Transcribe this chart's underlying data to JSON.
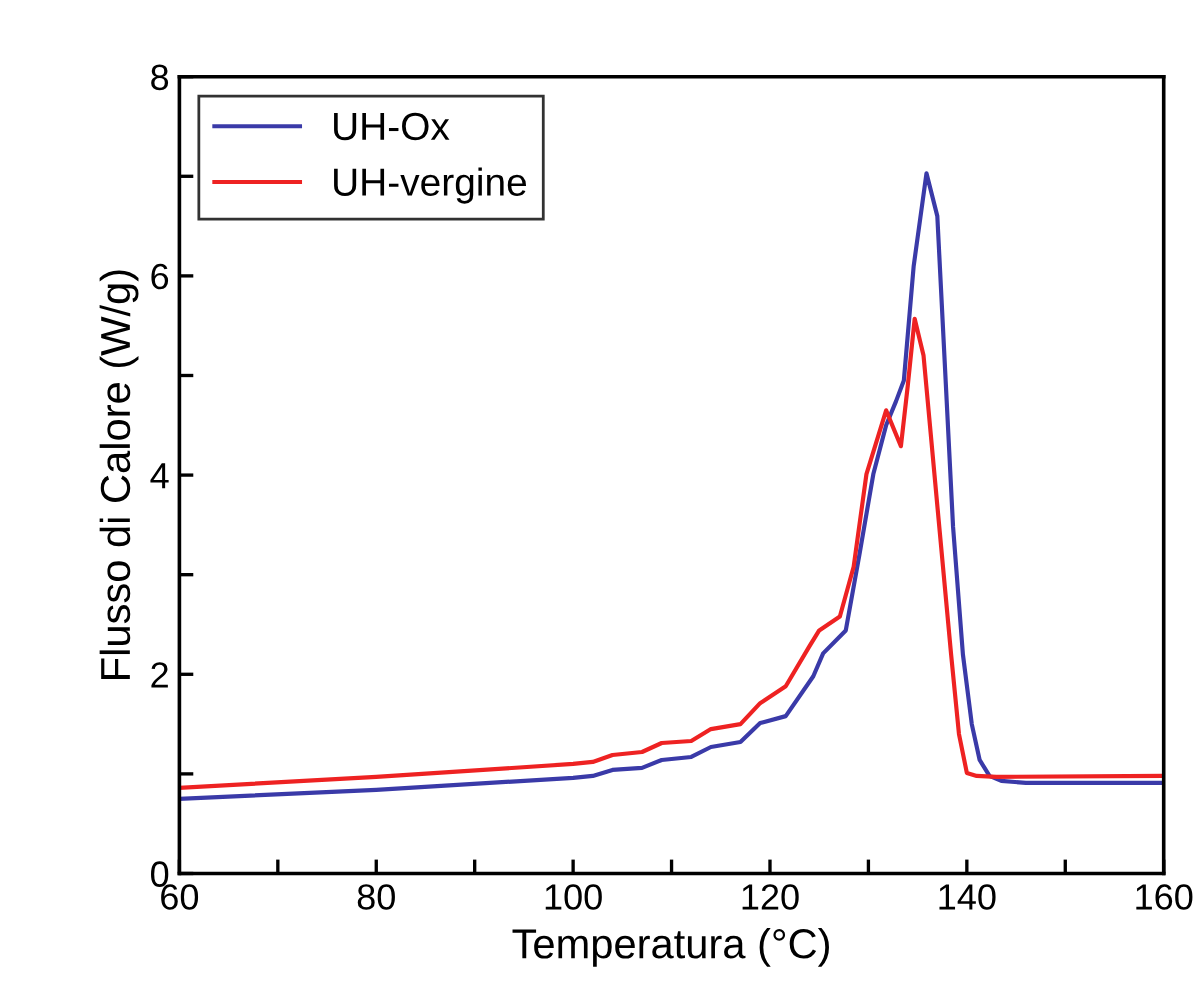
{
  "chart_data": {
    "type": "line",
    "xlabel": "Temperatura (°C)",
    "ylabel": "Flusso di Calore (W/g)",
    "xlim": [
      60,
      160
    ],
    "ylim": [
      0,
      8
    ],
    "xticks": [
      60,
      {
        "value": 70,
        "label": null
      },
      80,
      {
        "value": 90,
        "label": null
      },
      100,
      {
        "value": 110,
        "label": null
      },
      120,
      {
        "value": 130,
        "label": null
      },
      140,
      {
        "value": 150,
        "label": null
      },
      160
    ],
    "yticks": [
      0,
      {
        "value": 1,
        "label": null
      },
      2,
      {
        "value": 3,
        "label": null
      },
      4,
      {
        "value": 5,
        "label": null
      },
      6,
      {
        "value": 7,
        "label": null
      },
      8
    ],
    "legend": "top left",
    "grid": false,
    "series": [
      {
        "name": "UH-Ox",
        "color": "#3a3aa8",
        "x": [
          60,
          80,
          100,
          102,
          104,
          107,
          109,
          112,
          114,
          117,
          119,
          121.6,
          124.4,
          125.4,
          127.7,
          129.1,
          130.5,
          131.8,
          132.8,
          133.6,
          134.6,
          135.9,
          137,
          138.6,
          139.6,
          140.5,
          141.3,
          142.3,
          143.5,
          146,
          160
        ],
        "values": [
          0.75,
          0.84,
          0.96,
          0.98,
          1.04,
          1.06,
          1.14,
          1.17,
          1.27,
          1.32,
          1.51,
          1.58,
          1.98,
          2.21,
          2.44,
          3.21,
          4.01,
          4.5,
          4.74,
          4.95,
          6.1,
          7.03,
          6.6,
          3.48,
          2.2,
          1.5,
          1.14,
          0.98,
          0.93,
          0.91,
          0.91
        ]
      },
      {
        "name": "UH-vergine",
        "color": "#ee2222",
        "x": [
          60,
          80,
          100,
          102,
          104,
          107,
          109,
          112,
          114,
          117,
          119,
          121.6,
          124,
          125,
          127.1,
          128.5,
          129.8,
          131.8,
          133.3,
          134,
          134.7,
          135.6,
          137.2,
          138.4,
          139.2,
          140,
          141,
          143,
          160
        ],
        "values": [
          0.86,
          0.97,
          1.1,
          1.12,
          1.19,
          1.22,
          1.31,
          1.33,
          1.45,
          1.5,
          1.71,
          1.88,
          2.28,
          2.44,
          2.58,
          3.08,
          4.01,
          4.65,
          4.29,
          4.9,
          5.57,
          5.2,
          3.48,
          2.2,
          1.4,
          1.01,
          0.98,
          0.97,
          0.98
        ]
      }
    ]
  }
}
